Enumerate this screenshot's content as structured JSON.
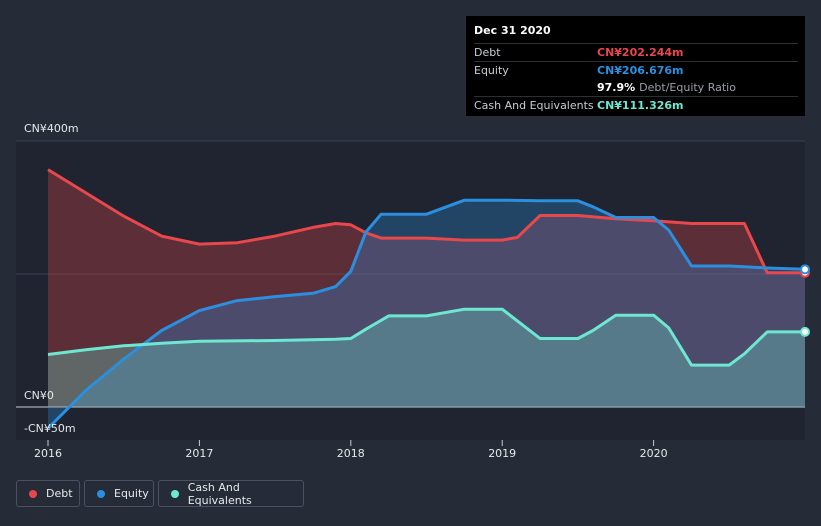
{
  "colors": {
    "background": "#252b37",
    "debt": "#e8474b",
    "equity": "#2b8fe0",
    "cash": "#6ee7d2"
  },
  "tooltip": {
    "date": "Dec 31 2020",
    "debt_label": "Debt",
    "debt_value": "CN¥202.244m",
    "equity_label": "Equity",
    "equity_value": "CN¥206.676m",
    "ratio_value": "97.9%",
    "ratio_label": "Debt/Equity Ratio",
    "cash_label": "Cash And Equivalents",
    "cash_value": "CN¥111.326m"
  },
  "legend": {
    "debt": "Debt",
    "equity": "Equity",
    "cash": "Cash And Equivalents"
  },
  "chart_data": {
    "type": "area",
    "ylim": [
      -50,
      400
    ],
    "y_tick_labels": [
      {
        "value": 400,
        "label": "CN¥400m"
      },
      {
        "value": 0,
        "label": "CN¥0"
      },
      {
        "value": -50,
        "label": "-CN¥50m"
      }
    ],
    "x_tick_labels": [
      {
        "value": 2016,
        "label": "2016"
      },
      {
        "value": 2017,
        "label": "2017"
      },
      {
        "value": 2018,
        "label": "2018"
      },
      {
        "value": 2019,
        "label": "2019"
      },
      {
        "value": 2020,
        "label": "2020"
      }
    ],
    "xlim": [
      2015.8,
      2021.0
    ],
    "series": [
      {
        "name": "Debt",
        "key": "debt",
        "points": [
          [
            2016.0,
            357
          ],
          [
            2016.25,
            322
          ],
          [
            2016.5,
            287
          ],
          [
            2016.75,
            257
          ],
          [
            2017.0,
            245
          ],
          [
            2017.25,
            247
          ],
          [
            2017.5,
            257
          ],
          [
            2017.75,
            270
          ],
          [
            2017.9,
            276
          ],
          [
            2018.0,
            274
          ],
          [
            2018.1,
            262
          ],
          [
            2018.2,
            254
          ],
          [
            2018.5,
            254
          ],
          [
            2018.75,
            251
          ],
          [
            2019.0,
            251
          ],
          [
            2019.1,
            255
          ],
          [
            2019.25,
            288
          ],
          [
            2019.5,
            288
          ],
          [
            2019.75,
            283
          ],
          [
            2020.0,
            280
          ],
          [
            2020.25,
            276
          ],
          [
            2020.5,
            276
          ],
          [
            2020.6,
            276
          ],
          [
            2020.75,
            202
          ],
          [
            2021.0,
            202
          ]
        ]
      },
      {
        "name": "Equity",
        "key": "equity",
        "points": [
          [
            2016.0,
            -32
          ],
          [
            2016.25,
            25
          ],
          [
            2016.5,
            72
          ],
          [
            2016.75,
            115
          ],
          [
            2017.0,
            145
          ],
          [
            2017.25,
            160
          ],
          [
            2017.5,
            166
          ],
          [
            2017.75,
            171
          ],
          [
            2017.9,
            181
          ],
          [
            2018.0,
            204
          ],
          [
            2018.1,
            263
          ],
          [
            2018.2,
            290
          ],
          [
            2018.5,
            290
          ],
          [
            2018.75,
            311
          ],
          [
            2019.0,
            311
          ],
          [
            2019.25,
            310
          ],
          [
            2019.5,
            310
          ],
          [
            2019.6,
            301
          ],
          [
            2019.75,
            285
          ],
          [
            2020.0,
            285
          ],
          [
            2020.1,
            266
          ],
          [
            2020.25,
            212
          ],
          [
            2020.5,
            212
          ],
          [
            2020.75,
            209
          ],
          [
            2021.0,
            207
          ]
        ]
      },
      {
        "name": "Cash And Equivalents",
        "key": "cash",
        "points": [
          [
            2016.0,
            79
          ],
          [
            2016.25,
            86
          ],
          [
            2016.5,
            92
          ],
          [
            2016.75,
            96
          ],
          [
            2017.0,
            99
          ],
          [
            2017.5,
            100
          ],
          [
            2017.9,
            102
          ],
          [
            2018.0,
            103
          ],
          [
            2018.1,
            117
          ],
          [
            2018.25,
            137
          ],
          [
            2018.5,
            137
          ],
          [
            2018.75,
            147
          ],
          [
            2019.0,
            147
          ],
          [
            2019.25,
            103
          ],
          [
            2019.5,
            103
          ],
          [
            2019.6,
            115
          ],
          [
            2019.75,
            138
          ],
          [
            2020.0,
            138
          ],
          [
            2020.1,
            119
          ],
          [
            2020.25,
            63
          ],
          [
            2020.5,
            63
          ],
          [
            2020.6,
            80
          ],
          [
            2020.75,
            113
          ],
          [
            2021.0,
            113
          ]
        ]
      }
    ],
    "grid": true
  }
}
